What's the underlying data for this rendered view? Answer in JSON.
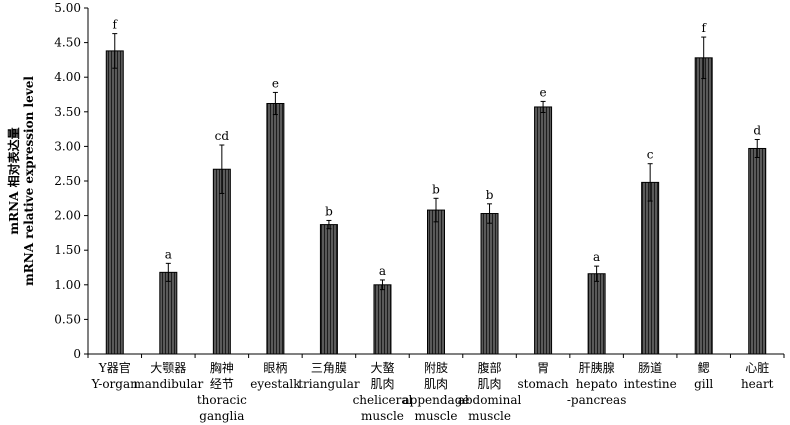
{
  "chart_data": {
    "type": "bar",
    "ylabel_lines": [
      "mRNA 相对表达量",
      "mRNA relative expression level"
    ],
    "ylim": [
      0,
      5
    ],
    "yticks": [
      "0",
      "0.50",
      "1.00",
      "1.50",
      "2.00",
      "2.50",
      "3.00",
      "3.50",
      "4.00",
      "4.50",
      "5.00"
    ],
    "ytick_values": [
      0,
      0.5,
      1,
      1.5,
      2,
      2.5,
      3,
      3.5,
      4,
      4.5,
      5
    ],
    "grid": false,
    "categories": [
      [
        "Y器官",
        "Y-organ"
      ],
      [
        "大颚器",
        "mandibular"
      ],
      [
        "胸神",
        "经节",
        "thoracic",
        "ganglia"
      ],
      [
        "眼柄",
        "eyestalk"
      ],
      [
        "三角膜",
        "triangular"
      ],
      [
        "大螯",
        "肌肉",
        "cheliceral",
        "muscle"
      ],
      [
        "附肢",
        "肌肉",
        "appendage",
        "muscle"
      ],
      [
        "腹部",
        "肌肉",
        "abdominal",
        "muscle"
      ],
      [
        "胃",
        "stomach"
      ],
      [
        "肝胰腺",
        "hepato",
        "-pancreas"
      ],
      [
        "肠道",
        "intestine"
      ],
      [
        "鳃",
        "gill"
      ],
      [
        "心脏",
        "heart"
      ]
    ],
    "values": [
      4.38,
      1.18,
      2.67,
      3.62,
      1.87,
      1.0,
      2.08,
      2.03,
      3.57,
      1.16,
      2.48,
      4.28,
      2.97
    ],
    "errors": [
      0.25,
      0.13,
      0.35,
      0.16,
      0.06,
      0.07,
      0.17,
      0.14,
      0.08,
      0.11,
      0.27,
      0.3,
      0.13
    ],
    "significance": [
      "f",
      "a",
      "cd",
      "e",
      "b",
      "a",
      "b",
      "b",
      "e",
      "a",
      "c",
      "f",
      "d"
    ]
  }
}
